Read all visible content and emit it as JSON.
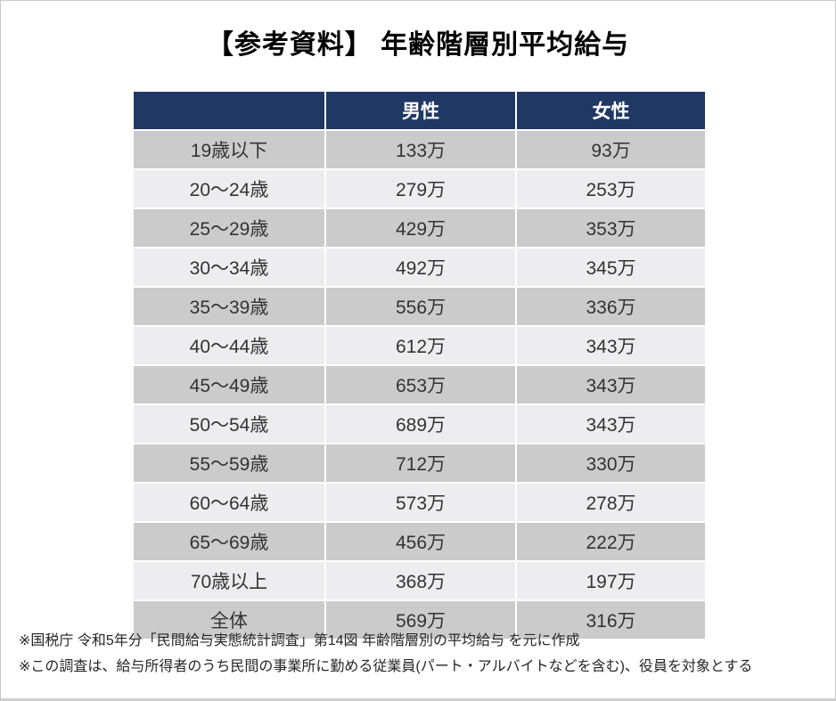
{
  "page": {
    "title": "【参考資料】 年齢階層別平均給与"
  },
  "table": {
    "columns": [
      "",
      "男性",
      "女性"
    ],
    "rows": [
      [
        "19歳以下",
        "133万",
        "93万"
      ],
      [
        "20〜24歳",
        "279万",
        "253万"
      ],
      [
        "25〜29歳",
        "429万",
        "353万"
      ],
      [
        "30〜34歳",
        "492万",
        "345万"
      ],
      [
        "35〜39歳",
        "556万",
        "336万"
      ],
      [
        "40〜44歳",
        "612万",
        "343万"
      ],
      [
        "45〜49歳",
        "653万",
        "343万"
      ],
      [
        "50〜54歳",
        "689万",
        "343万"
      ],
      [
        "55〜59歳",
        "712万",
        "330万"
      ],
      [
        "60〜64歳",
        "573万",
        "278万"
      ],
      [
        "65〜69歳",
        "456万",
        "222万"
      ],
      [
        "70歳以上",
        "368万",
        "197万"
      ],
      [
        "全体",
        "569万",
        "316万"
      ]
    ]
  },
  "footnotes": {
    "line1": "※国税庁 令和5年分「民間給与実態統計調査」第14図 年齢階層別の平均給与 を元に作成",
    "line2": "※この調査は、給与所得者のうち民間の事業所に勤める従業員(パート・アルバイトなどを含む)、役員を対象とする"
  },
  "colors": {
    "header_bg": "#1f3864",
    "header_text": "#ffffff",
    "row_dark": "#cbcbcb",
    "row_light": "#ededef",
    "cell_text": "#333333"
  },
  "chart_data": {
    "type": "table",
    "title": "【参考資料】 年齢階層別平均給与",
    "unit": "万円",
    "categories": [
      "19歳以下",
      "20〜24歳",
      "25〜29歳",
      "30〜34歳",
      "35〜39歳",
      "40〜44歳",
      "45〜49歳",
      "50〜54歳",
      "55〜59歳",
      "60〜64歳",
      "65〜69歳",
      "70歳以上",
      "全体"
    ],
    "series": [
      {
        "name": "男性",
        "values": [
          133,
          279,
          429,
          492,
          556,
          612,
          653,
          689,
          712,
          573,
          456,
          368,
          569
        ]
      },
      {
        "name": "女性",
        "values": [
          93,
          253,
          353,
          345,
          336,
          343,
          343,
          343,
          330,
          278,
          222,
          197,
          316
        ]
      }
    ]
  }
}
